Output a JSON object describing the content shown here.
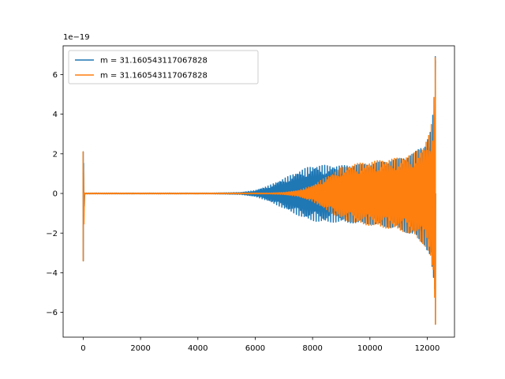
{
  "chart_data": {
    "type": "line",
    "title": "",
    "xlabel": "",
    "ylabel": "",
    "offset_text": "1e−19",
    "xlim": [
      -700,
      12950
    ],
    "ylim": [
      -7.25,
      7.45
    ],
    "xticks": [
      0,
      2000,
      4000,
      6000,
      8000,
      10000,
      12000
    ],
    "xtick_labels": [
      "0",
      "2000",
      "4000",
      "6000",
      "8000",
      "10000",
      "12000"
    ],
    "yticks": [
      -6,
      -4,
      -2,
      0,
      2,
      4,
      6
    ],
    "ytick_labels": [
      "−6",
      "−4",
      "−2",
      "0",
      "2",
      "4",
      "6"
    ],
    "grid": false,
    "legend_position": "upper-left",
    "series": [
      {
        "name": "m = 31.160543117067828",
        "color": "#1f77b4",
        "envelope": {
          "x": [
            0,
            50,
            4500,
            5500,
            6000,
            6500,
            7000,
            7500,
            7800,
            8100,
            8400,
            8700,
            9000,
            10000,
            11000,
            11500,
            11900,
            12100,
            12200,
            12260,
            12290
          ],
          "upper": [
            2.1,
            0.02,
            0.02,
            0.05,
            0.15,
            0.4,
            0.75,
            1.1,
            1.3,
            1.4,
            1.42,
            1.4,
            1.4,
            1.5,
            1.75,
            2.0,
            2.5,
            3.1,
            4.0,
            5.6,
            6.9
          ],
          "lower": [
            -3.4,
            -0.02,
            -0.02,
            -0.05,
            -0.15,
            -0.4,
            -0.75,
            -1.1,
            -1.3,
            -1.4,
            -1.45,
            -1.45,
            -1.45,
            -1.55,
            -1.8,
            -2.1,
            -2.6,
            -3.2,
            -4.3,
            -5.5,
            -6.6
          ]
        }
      },
      {
        "name": "m = 31.160543117067828",
        "color": "#ff7f0e",
        "envelope": {
          "x": [
            0,
            50,
            6500,
            7000,
            7500,
            8000,
            8500,
            9000,
            9500,
            10000,
            11000,
            11500,
            11900,
            12100,
            12200,
            12260,
            12290
          ],
          "upper": [
            2.1,
            0.02,
            0.02,
            0.05,
            0.15,
            0.4,
            0.85,
            1.3,
            1.5,
            1.6,
            1.8,
            2.0,
            2.5,
            3.1,
            4.0,
            5.6,
            6.85
          ],
          "lower": [
            -3.4,
            -0.02,
            -0.02,
            -0.05,
            -0.15,
            -0.4,
            -0.85,
            -1.3,
            -1.5,
            -1.62,
            -1.85,
            -2.1,
            -2.6,
            -3.2,
            -4.3,
            -5.5,
            -6.6
          ]
        }
      }
    ]
  }
}
